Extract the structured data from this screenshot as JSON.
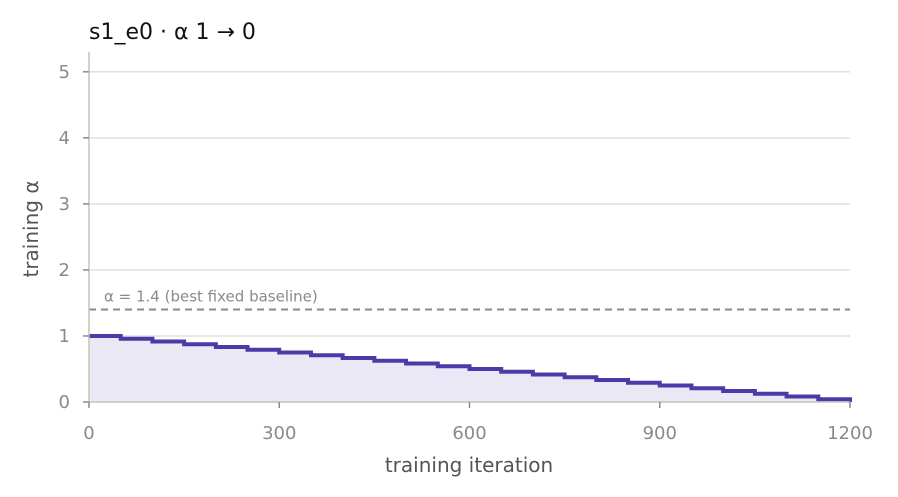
{
  "chart_data": {
    "type": "line",
    "title": "s1_e0   ·   α 1 → 0",
    "xlabel": "training iteration",
    "ylabel": "training α",
    "xlim": [
      0,
      1200
    ],
    "ylim": [
      0,
      5.3
    ],
    "x_ticks": [
      0,
      300,
      600,
      900,
      1200
    ],
    "x_tick_labels": [
      "0",
      "300",
      "600",
      "900",
      "1200"
    ],
    "y_ticks": [
      0,
      1,
      2,
      3,
      4,
      5
    ],
    "y_tick_labels": [
      "0",
      "1",
      "2",
      "3",
      "4",
      "5"
    ],
    "grid": "horizontal",
    "series": [
      {
        "step": "post",
        "fill": true,
        "x": [
          0,
          50,
          100,
          150,
          200,
          250,
          300,
          350,
          400,
          450,
          500,
          550,
          600,
          650,
          700,
          750,
          800,
          850,
          900,
          950,
          1000,
          1050,
          1100,
          1150,
          1200
        ],
        "y": [
          1.0,
          0.958,
          0.917,
          0.875,
          0.833,
          0.792,
          0.75,
          0.708,
          0.667,
          0.625,
          0.583,
          0.542,
          0.5,
          0.458,
          0.417,
          0.375,
          0.333,
          0.292,
          0.25,
          0.208,
          0.167,
          0.125,
          0.083,
          0.042,
          0.0
        ]
      }
    ],
    "reference_line": {
      "y": 1.4,
      "style": "dashed",
      "label": "α = 1.4 (best fixed baseline)"
    },
    "colors": {
      "line": "#4b3aa8",
      "fill": "#ebe8f5",
      "reference": "#8a8a8a",
      "grid": "#e2e2d6",
      "axis": "#c4c4b8"
    }
  }
}
